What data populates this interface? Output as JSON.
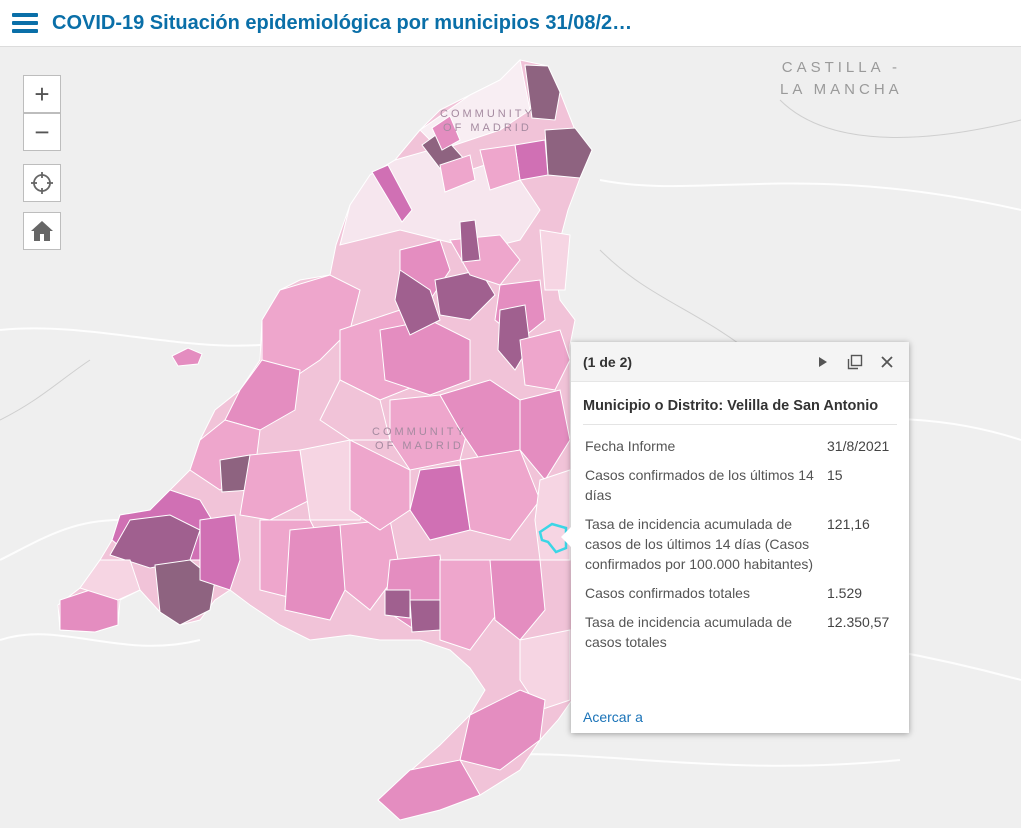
{
  "header": {
    "title": "COVID-19 Situación epidemiológica por municipios 31/08/2…"
  },
  "map": {
    "labels": {
      "region_top_line1": "CASTILLA -",
      "region_top_line2": "LA MANCHA",
      "community_upper_line1": "COMMUNITY",
      "community_upper_line2": "OF MADRID",
      "community_center_line1": "COMMUNITY",
      "community_center_line2": "OF MADRID"
    },
    "colors": {
      "water": "#efefef",
      "light_pink": "#f6d5e3",
      "pink": "#eea6cc",
      "mid_pink": "#e48dc0",
      "magenta": "#d070b4",
      "purple": "#a0608f",
      "dark_purple": "#8e6380",
      "selected_outline": "#3bd6e6"
    }
  },
  "controls": {
    "zoom_in": "+",
    "zoom_out": "−",
    "locate_icon": "crosshair-icon",
    "home_icon": "home-icon"
  },
  "popup": {
    "count": "(1 de 2)",
    "title": "Municipio o Distrito: Velilla de San Antonio",
    "rows": [
      {
        "key": "Fecha Informe",
        "value": "31/8/2021"
      },
      {
        "key": "Casos confirmados de los últimos 14 días",
        "value": "15"
      },
      {
        "key": "Tasa de incidencia acumulada de casos de los últimos 14 días (Casos confirmados por 100.000 habitantes)",
        "value": "121,16"
      },
      {
        "key": "Casos confirmados totales",
        "value": "1.529"
      },
      {
        "key": "Tasa de incidencia acumulada de casos totales",
        "value": "12.350,57"
      }
    ],
    "zoom_link": "Acercar a"
  }
}
